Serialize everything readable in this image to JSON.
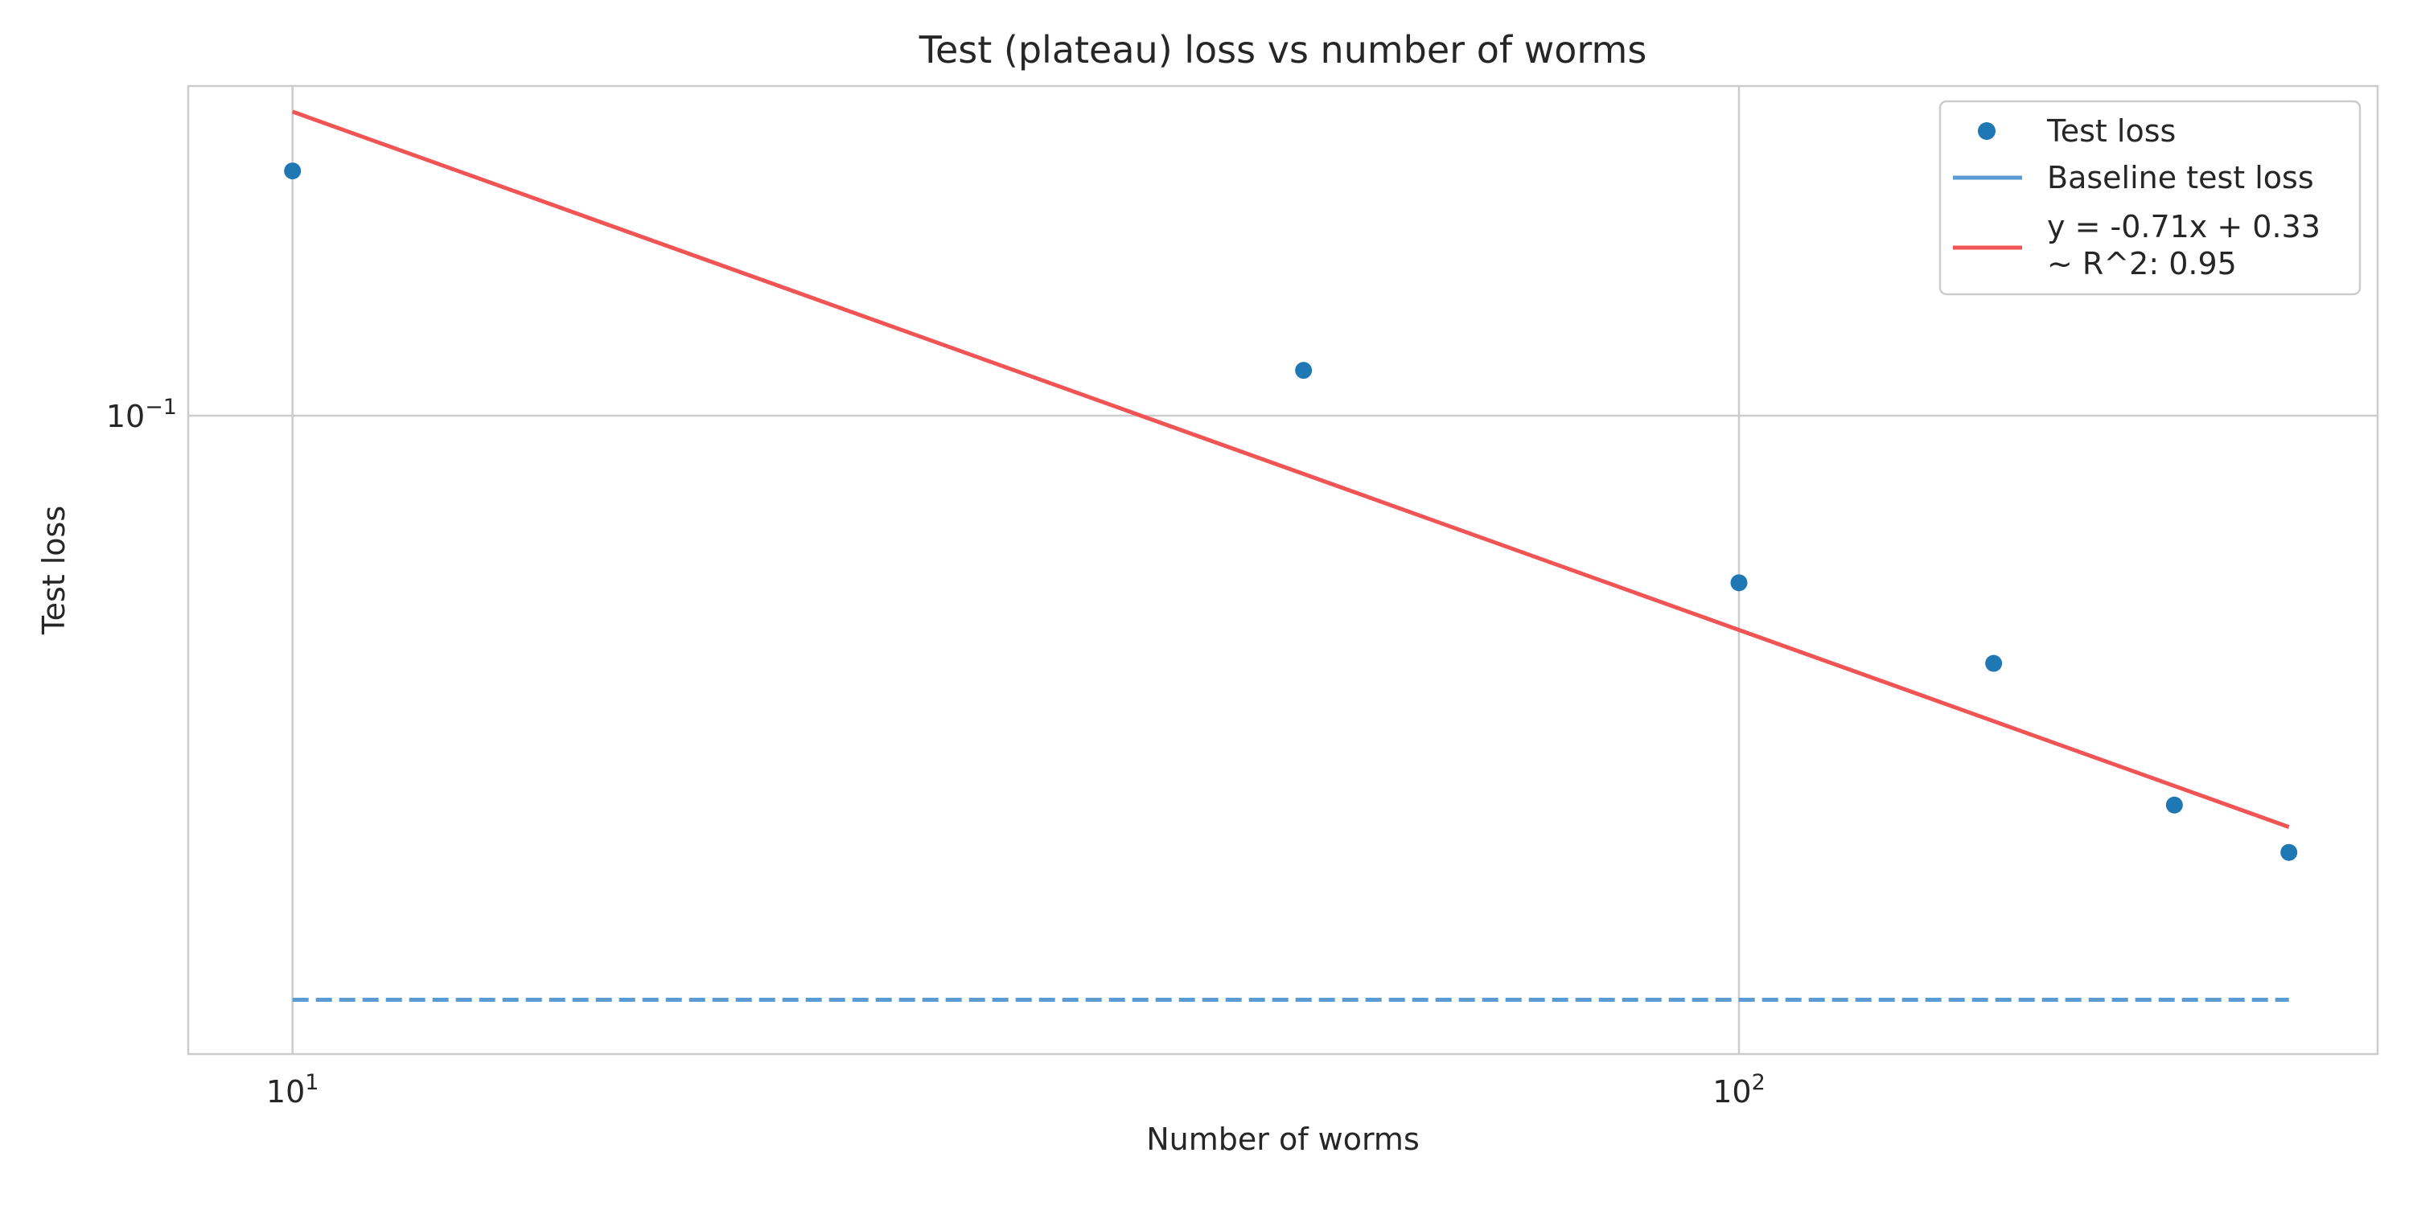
{
  "chart_data": {
    "type": "scatter",
    "title": "Test (plateau) loss vs number of worms",
    "xlabel": "Number of worms",
    "ylabel": "Test loss",
    "xscale": "log",
    "yscale": "log",
    "xlim": [
      8.47,
      276.4
    ],
    "ylim": [
      0.02478,
      0.2055
    ],
    "grid": true,
    "legend_position": "upper-right",
    "x_ticks": [
      {
        "value": 10,
        "base": "10",
        "exp": "1"
      },
      {
        "value": 100,
        "base": "10",
        "exp": "2"
      }
    ],
    "y_ticks": [
      {
        "value": 0.1,
        "base": "10",
        "exp": "−1"
      }
    ],
    "series": [
      {
        "name": "Test loss",
        "kind": "scatter",
        "color": "#1f77b4",
        "x": [
          10,
          50,
          100,
          150,
          200,
          240
        ],
        "y": [
          0.1707,
          0.1104,
          0.0694,
          0.0582,
          0.0427,
          0.0385
        ]
      },
      {
        "name": "Baseline test loss",
        "kind": "line",
        "style": "dashed",
        "color": "#5a9bd4",
        "x": [
          10,
          240
        ],
        "y": [
          0.0279,
          0.0279
        ]
      },
      {
        "name": "y = -0.71x + 0.33\n~ R^2: 0.95",
        "kind": "line",
        "style": "solid",
        "color": "#f05454",
        "x": [
          10,
          240
        ],
        "y": [
          0.1943,
          0.0407
        ]
      }
    ]
  }
}
